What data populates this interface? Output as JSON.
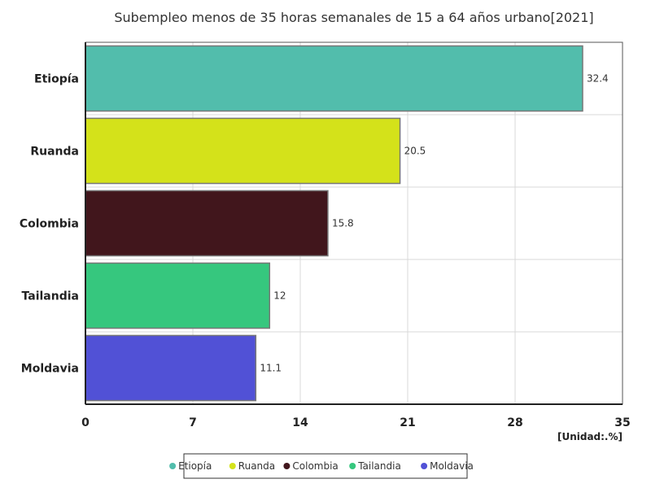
{
  "chart_data": {
    "type": "bar",
    "orientation": "horizontal",
    "title": "Subempleo menos de 35 horas semanales de 15 a 64 años urbano[2021]",
    "categories": [
      "Etiopía",
      "Ruanda",
      "Colombia",
      "Tailandia",
      "Moldavia"
    ],
    "values": [
      32.4,
      20.5,
      15.8,
      12,
      11.1
    ],
    "colors": [
      "#52bdac",
      "#d4e21a",
      "#41161c",
      "#36c77e",
      "#5151d6"
    ],
    "xlim": [
      0,
      35
    ],
    "xticks": [
      0,
      7,
      14,
      21,
      28,
      35
    ],
    "unit": "[Unidad:.%]",
    "grid": true,
    "legend_position": "bottom"
  }
}
